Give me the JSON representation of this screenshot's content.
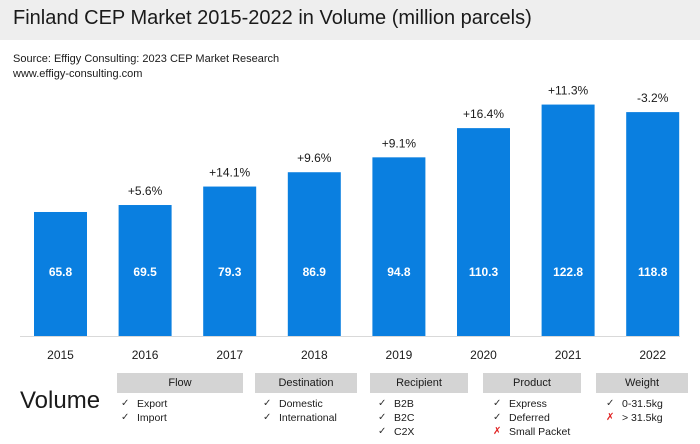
{
  "header": {
    "title": "Finland CEP Market 2015-2022 in Volume (million parcels)",
    "source_line1": "Source: Effigy Consulting: 2023 CEP Market Research",
    "source_line2": "www.effigy-consulting.com"
  },
  "colors": {
    "bar": "#0a7fe0",
    "check": "#333333",
    "cross": "#e02020"
  },
  "chart_data": {
    "type": "bar",
    "title": "Finland CEP Market 2015-2022 in Volume (million parcels)",
    "xlabel": "",
    "ylabel": "",
    "ylim": [
      0,
      130
    ],
    "grid": false,
    "categories": [
      "2015",
      "2016",
      "2017",
      "2018",
      "2019",
      "2020",
      "2021",
      "2022"
    ],
    "values": [
      65.8,
      69.5,
      79.3,
      86.9,
      94.8,
      110.3,
      122.8,
      118.8
    ],
    "value_labels": [
      "65.8",
      "69.5",
      "79.3",
      "86.9",
      "94.8",
      "110.3",
      "122.8",
      "118.8"
    ],
    "growth_labels": [
      "",
      "+5.6%",
      "+14.1%",
      "+9.6%",
      "+9.1%",
      "+16.4%",
      "+11.3%",
      "-3.2%"
    ]
  },
  "legend": {
    "volume_title": "Volume",
    "categories": [
      {
        "key": "flow",
        "title": "Flow",
        "items": [
          {
            "label": "Export",
            "icon": "check-icon"
          },
          {
            "label": "Import",
            "icon": "check-icon"
          }
        ]
      },
      {
        "key": "destination",
        "title": "Destination",
        "items": [
          {
            "label": "Domestic",
            "icon": "check-icon"
          },
          {
            "label": "International",
            "icon": "check-icon"
          }
        ]
      },
      {
        "key": "recipient",
        "title": "Recipient",
        "items": [
          {
            "label": "B2B",
            "icon": "check-icon"
          },
          {
            "label": "B2C",
            "icon": "check-icon"
          },
          {
            "label": "C2X",
            "icon": "check-icon"
          }
        ]
      },
      {
        "key": "product",
        "title": "Product",
        "items": [
          {
            "label": "Express",
            "icon": "check-icon"
          },
          {
            "label": "Deferred",
            "icon": "check-icon"
          },
          {
            "label": "Small Packet",
            "icon": "cross-icon"
          }
        ]
      },
      {
        "key": "weight",
        "title": "Weight",
        "items": [
          {
            "label": "0-31.5kg",
            "icon": "check-icon"
          },
          {
            "label": "> 31.5kg",
            "icon": "cross-icon"
          }
        ]
      }
    ]
  }
}
